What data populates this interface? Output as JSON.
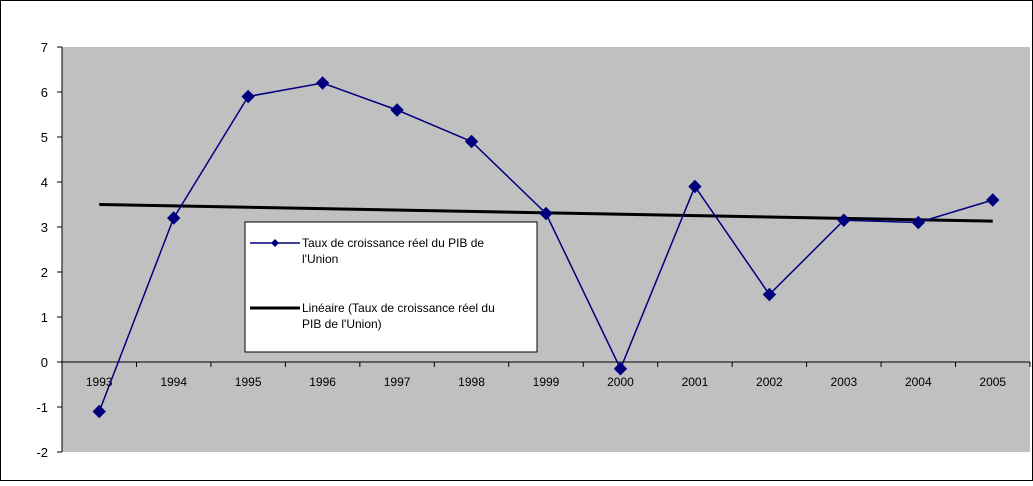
{
  "chart_data": {
    "type": "line",
    "title": "",
    "xlabel": "",
    "ylabel": "",
    "ylim": [
      -2,
      7
    ],
    "y_ticks": [
      "-2",
      "-1",
      "0",
      "1",
      "2",
      "3",
      "4",
      "5",
      "6",
      "7"
    ],
    "categories": [
      "1993",
      "1994",
      "1995",
      "1996",
      "1997",
      "1998",
      "1999",
      "2000",
      "2001",
      "2002",
      "2003",
      "2004",
      "2005"
    ],
    "series": [
      {
        "name": "Taux de croissance réel du PIB de l'Union",
        "color": "#00007f",
        "marker": "diamond",
        "values": [
          -1.1,
          3.2,
          5.9,
          6.2,
          5.6,
          4.9,
          3.3,
          -0.15,
          3.9,
          1.5,
          3.15,
          3.1,
          3.6
        ]
      },
      {
        "name": "Linéaire (Taux de croissance réel du PIB de l'Union)",
        "color": "#000000",
        "type": "trendline",
        "start": 3.5,
        "end": 3.13
      }
    ],
    "legend": {
      "position": "center-left",
      "entries": [
        [
          "Taux de croissance réel du PIB de",
          "l'Union"
        ],
        [
          "Linéaire (Taux de croissance réel du",
          "PIB de l'Union)"
        ]
      ]
    },
    "plot_background": "#c0c0c0",
    "grid": false
  }
}
